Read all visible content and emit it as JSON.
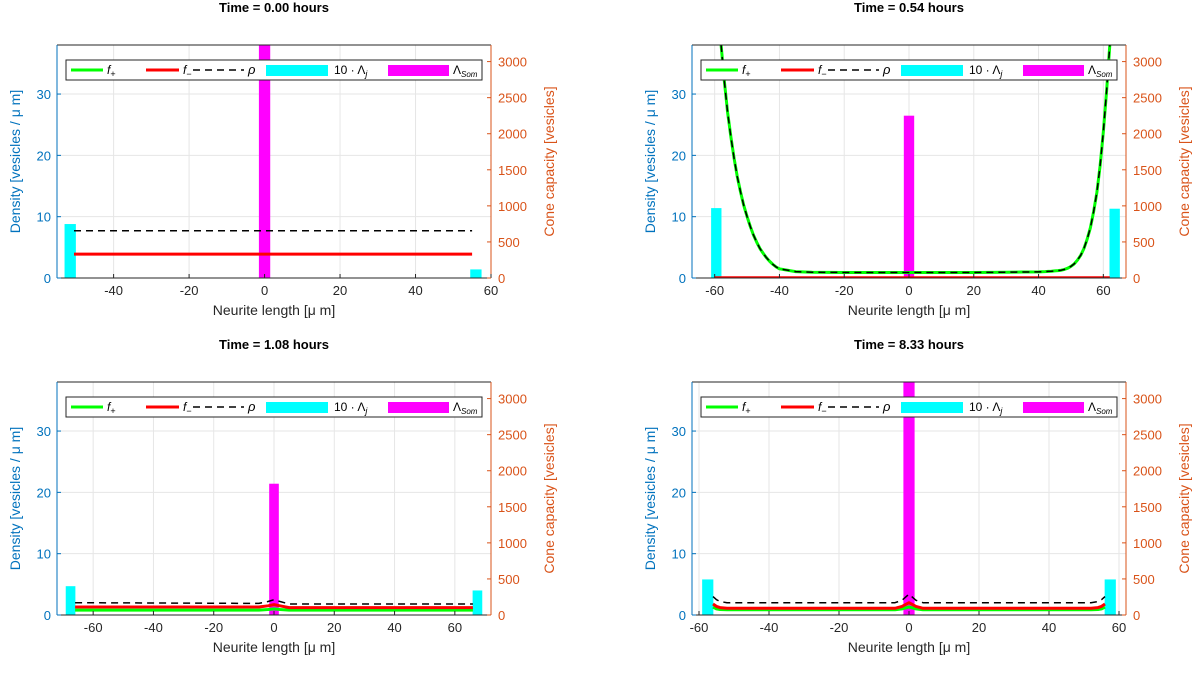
{
  "colors": {
    "left_axis": "#0072BD",
    "right_axis": "#D95319",
    "f_plus": "#00FF00",
    "f_minus": "#FF0000",
    "rho": "#000000",
    "lambda_j": "#00FFFF",
    "lambda_som": "#FF00FF",
    "grid": "#E6E6E6"
  },
  "chart_data": [
    {
      "type": "line",
      "title": "Time = 0.00 hours",
      "xlabel": "Neurite length [μ m]",
      "ylabel": "Density [vesicles / μ m]",
      "y2label": "Cone capacity [vesicles]",
      "xlim": [
        -55,
        60
      ],
      "xticks": [
        -40,
        -20,
        0,
        20,
        40,
        60
      ],
      "ylim": [
        0,
        38
      ],
      "yticks": [
        0,
        10,
        20,
        30
      ],
      "y2lim": [
        0,
        3230
      ],
      "y2ticks": [
        0,
        500,
        1000,
        1500,
        2000,
        2500,
        3000
      ],
      "grid": true,
      "legend_position": "top",
      "legend": [
        "f+",
        "f−",
        "ρ",
        "10 · Λj",
        "ΛSom"
      ],
      "series": [
        {
          "name": "f+",
          "x": [],
          "y": []
        },
        {
          "name": "f−",
          "x": [
            -50.5,
            55
          ],
          "y": [
            3.9,
            3.9
          ]
        },
        {
          "name": "ρ",
          "x": [
            -50.5,
            55
          ],
          "y": [
            7.7,
            7.7
          ]
        }
      ],
      "bars": [
        {
          "name": "10 · Λj",
          "x": -51.5,
          "value": 8.8
        },
        {
          "name": "10 · Λj",
          "x": 56,
          "value": 1.4
        },
        {
          "name": "ΛSom",
          "x": 0,
          "value_capacity": 3230
        }
      ],
      "bar_width": 3
    },
    {
      "type": "line",
      "title": "Time = 0.54 hours",
      "xlabel": "Neurite length [μ m]",
      "ylabel": "Density [vesicles / μ m]",
      "y2label": "Cone capacity [vesicles]",
      "xlim": [
        -67,
        67
      ],
      "xticks": [
        -60,
        -40,
        -20,
        0,
        20,
        40,
        60
      ],
      "ylim": [
        0,
        38
      ],
      "yticks": [
        0,
        10,
        20,
        30
      ],
      "y2lim": [
        0,
        3230
      ],
      "y2ticks": [
        0,
        500,
        1000,
        1500,
        2000,
        2500,
        3000
      ],
      "grid": true,
      "legend_position": "top",
      "legend": [
        "f+",
        "f−",
        "ρ",
        "10 · Λj",
        "ΛSom"
      ],
      "series": [
        {
          "name": "f+",
          "x": [
            -58,
            -57,
            -56,
            -55,
            -54,
            -53,
            -52,
            -51,
            -50,
            -49,
            -48,
            -47,
            -46,
            -45,
            -44,
            -43,
            -42,
            -41,
            -40,
            -35,
            -30,
            -20,
            -10,
            0,
            10,
            20,
            30,
            35,
            40,
            41,
            42,
            43,
            44,
            45,
            46,
            47,
            48,
            49,
            50,
            51,
            52,
            53,
            54,
            55,
            56,
            57,
            58,
            59,
            60,
            61,
            62
          ],
          "y": [
            38,
            32,
            27,
            23,
            19.5,
            16.5,
            14,
            11.8,
            10,
            8.4,
            7,
            5.8,
            4.8,
            4,
            3.3,
            2.7,
            2.2,
            1.8,
            1.5,
            1.05,
            0.95,
            0.9,
            0.9,
            0.9,
            0.9,
            0.9,
            0.95,
            0.98,
            1.0,
            1.03,
            1.05,
            1.08,
            1.1,
            1.15,
            1.2,
            1.28,
            1.4,
            1.6,
            1.9,
            2.3,
            2.9,
            3.7,
            4.8,
            6.3,
            8.2,
            10.8,
            14,
            18.3,
            23.8,
            30.5,
            38
          ]
        },
        {
          "name": "f−",
          "x": [
            -60,
            62
          ],
          "y": [
            0.05,
            0.05
          ]
        },
        {
          "name": "ρ",
          "x": [
            -58,
            -57,
            -56,
            -55,
            -54,
            -53,
            -52,
            -51,
            -50,
            -49,
            -48,
            -47,
            -46,
            -45,
            -44,
            -43,
            -42,
            -41,
            -40,
            -35,
            -30,
            -20,
            -10,
            0,
            10,
            20,
            30,
            35,
            40,
            41,
            42,
            43,
            44,
            45,
            46,
            47,
            48,
            49,
            50,
            51,
            52,
            53,
            54,
            55,
            56,
            57,
            58,
            59,
            60,
            61,
            62
          ],
          "y": [
            38,
            32,
            27,
            23,
            19.5,
            16.5,
            14,
            11.8,
            10,
            8.4,
            7,
            5.8,
            4.8,
            4,
            3.3,
            2.7,
            2.2,
            1.8,
            1.5,
            1.05,
            0.95,
            0.9,
            0.9,
            0.9,
            0.9,
            0.9,
            0.95,
            0.98,
            1.0,
            1.03,
            1.05,
            1.08,
            1.1,
            1.15,
            1.2,
            1.28,
            1.4,
            1.6,
            1.9,
            2.3,
            2.9,
            3.7,
            4.8,
            6.3,
            8.2,
            10.8,
            14,
            18.3,
            23.8,
            30.5,
            38
          ]
        }
      ],
      "bars": [
        {
          "name": "10 · Λj",
          "x": -59.5,
          "value": 11.4
        },
        {
          "name": "10 · Λj",
          "x": 63.5,
          "value": 11.3
        },
        {
          "name": "ΛSom",
          "x": 0,
          "value_capacity": 2250
        }
      ],
      "bar_width": 3.2
    },
    {
      "type": "line",
      "title": "Time = 1.08 hours",
      "xlabel": "Neurite length [μ m]",
      "ylabel": "Density [vesicles / μ m]",
      "y2label": "Cone capacity [vesicles]",
      "xlim": [
        -72,
        72
      ],
      "xticks": [
        -60,
        -40,
        -20,
        0,
        20,
        40,
        60
      ],
      "ylim": [
        0,
        38
      ],
      "yticks": [
        0,
        10,
        20,
        30
      ],
      "y2lim": [
        0,
        3230
      ],
      "y2ticks": [
        0,
        500,
        1000,
        1500,
        2000,
        2500,
        3000
      ],
      "grid": true,
      "legend_position": "top",
      "legend": [
        "f+",
        "f−",
        "ρ",
        "10 · Λj",
        "ΛSom"
      ],
      "series": [
        {
          "name": "f+",
          "x": [
            -66,
            -5,
            -2,
            0,
            2,
            5,
            66
          ],
          "y": [
            0.8,
            0.8,
            0.9,
            1.0,
            0.9,
            0.8,
            0.8
          ]
        },
        {
          "name": "f−",
          "x": [
            -66,
            -5,
            -2,
            0,
            2,
            5,
            66
          ],
          "y": [
            1.3,
            1.3,
            1.5,
            1.7,
            1.5,
            1.2,
            1.2
          ]
        },
        {
          "name": "ρ",
          "x": [
            -66,
            -5,
            -2,
            0,
            2,
            5,
            66
          ],
          "y": [
            2.0,
            1.9,
            2.2,
            2.5,
            2.2,
            1.8,
            1.8
          ]
        }
      ],
      "bars": [
        {
          "name": "10 · Λj",
          "x": -67.5,
          "value": 4.7
        },
        {
          "name": "10 · Λj",
          "x": 67.5,
          "value": 4.0
        },
        {
          "name": "ΛSom",
          "x": 0,
          "value_capacity": 1820
        }
      ],
      "bar_width": 3.2
    },
    {
      "type": "line",
      "title": "Time = 8.33 hours",
      "xlabel": "Neurite length [μ m]",
      "ylabel": "Density [vesicles / μ m]",
      "y2label": "Cone capacity [vesicles]",
      "xlim": [
        -62,
        62
      ],
      "xticks": [
        -60,
        -40,
        -20,
        0,
        20,
        40,
        60
      ],
      "ylim": [
        0,
        38
      ],
      "yticks": [
        0,
        10,
        20,
        30
      ],
      "y2lim": [
        0,
        3230
      ],
      "y2ticks": [
        0,
        500,
        1000,
        1500,
        2000,
        2500,
        3000
      ],
      "grid": true,
      "legend_position": "top",
      "legend": [
        "f+",
        "f−",
        "ρ",
        "10 · Λj",
        "ΛSom"
      ],
      "series": [
        {
          "name": "f+",
          "x": [
            -56,
            -55,
            -54,
            -52,
            -4,
            -2,
            0,
            2,
            4,
            52,
            54,
            55,
            56
          ],
          "y": [
            1.3,
            1.0,
            0.9,
            0.85,
            0.85,
            1.0,
            1.3,
            1.0,
            0.85,
            0.85,
            0.9,
            1.0,
            1.3
          ]
        },
        {
          "name": "f−",
          "x": [
            -56,
            -55,
            -54,
            -52,
            -4,
            -2,
            0,
            2,
            4,
            52,
            54,
            55,
            56
          ],
          "y": [
            1.8,
            1.4,
            1.2,
            1.1,
            1.1,
            1.4,
            2.0,
            1.4,
            1.1,
            1.1,
            1.2,
            1.4,
            1.8
          ]
        },
        {
          "name": "ρ",
          "x": [
            -56,
            -55,
            -54,
            -52,
            -4,
            -2,
            0,
            2,
            4,
            52,
            54,
            55,
            56
          ],
          "y": [
            3.0,
            2.5,
            2.2,
            2.0,
            2.0,
            2.4,
            3.4,
            2.4,
            2.0,
            2.0,
            2.2,
            2.5,
            3.0
          ]
        }
      ],
      "bars": [
        {
          "name": "10 · Λj",
          "x": -57.5,
          "value": 5.8
        },
        {
          "name": "10 · Λj",
          "x": 57.5,
          "value": 5.8
        },
        {
          "name": "ΛSom",
          "x": 0,
          "value_capacity": 3230
        }
      ],
      "bar_width": 3.2
    }
  ]
}
